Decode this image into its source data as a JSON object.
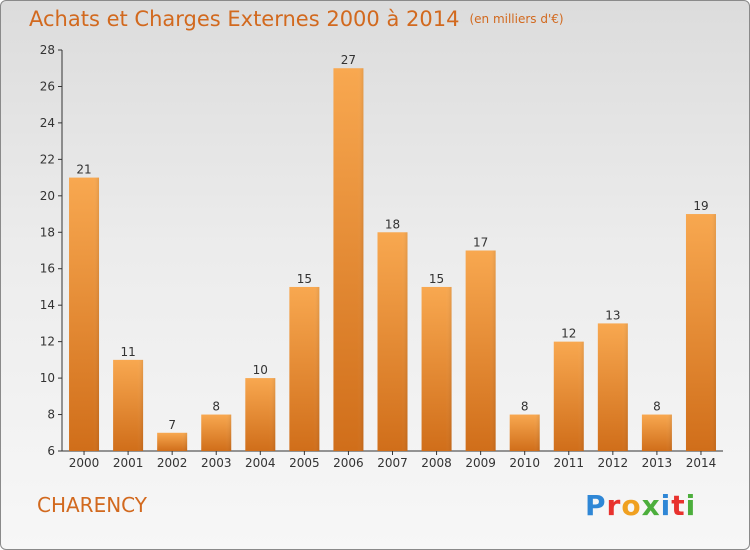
{
  "header": {
    "title": "Achats et Charges Externes 2000 à 2014",
    "unit": "(en milliers d'€)"
  },
  "footer": {
    "commune": "CHARENCY",
    "logo_text": "Proxiti"
  },
  "colors": {
    "accent": "#d2691e",
    "bar_light": "#f8a850",
    "bar_dark": "#d06e1a",
    "logo": [
      "#2f87d6",
      "#e8322e",
      "#f0a020",
      "#4cae3c",
      "#2f87d6",
      "#e8322e",
      "#4cae3c"
    ]
  },
  "chart_data": {
    "type": "bar",
    "title": "Achats et Charges Externes 2000 à 2014",
    "subtitle": "(en milliers d'€)",
    "categories": [
      "2000",
      "2001",
      "2002",
      "2003",
      "2004",
      "2005",
      "2006",
      "2007",
      "2008",
      "2009",
      "2010",
      "2011",
      "2012",
      "2013",
      "2014"
    ],
    "values": [
      21,
      11,
      7,
      8,
      10,
      15,
      27,
      18,
      15,
      17,
      8,
      12,
      13,
      8,
      19
    ],
    "ylim": [
      6,
      28
    ],
    "yticks": [
      6,
      8,
      10,
      12,
      14,
      16,
      18,
      20,
      22,
      24,
      26,
      28
    ],
    "grid": false,
    "data_labels": true
  }
}
